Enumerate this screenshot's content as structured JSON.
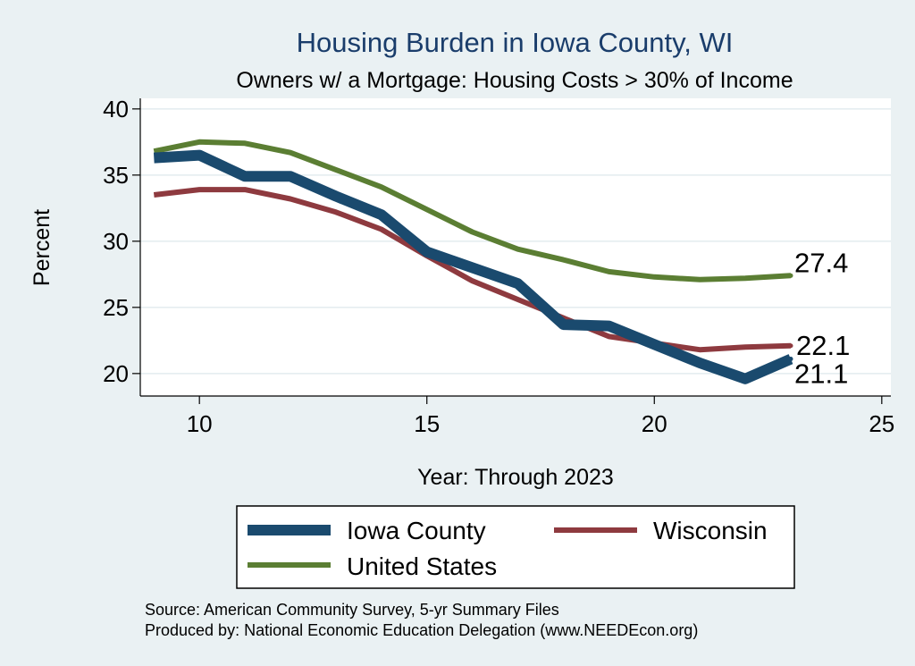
{
  "chart_data": {
    "type": "line",
    "title": "Housing Burden in Iowa County, WI",
    "subtitle": "Owners w/ a Mortgage: Housing Costs > 30% of Income",
    "xlabel": "Year: Through 2023",
    "ylabel": "Percent",
    "xlim": [
      8.7,
      25.2
    ],
    "ylim": [
      18.3,
      40.8
    ],
    "xticks": [
      10,
      15,
      20,
      25
    ],
    "yticks": [
      20,
      25,
      30,
      35,
      40
    ],
    "grid": true,
    "legend_placement": "bottom",
    "x": [
      9,
      10,
      11,
      12,
      13,
      14,
      15,
      16,
      17,
      18,
      19,
      20,
      21,
      22,
      23
    ],
    "series": [
      {
        "name": "Iowa County",
        "color": "#1a4a6e",
        "values": [
          36.3,
          36.5,
          34.9,
          34.9,
          33.4,
          32.0,
          29.2,
          28.0,
          26.8,
          23.7,
          23.6,
          22.2,
          20.8,
          19.6,
          21.1
        ],
        "end_label": "21.1"
      },
      {
        "name": "Wisconsin",
        "color": "#8e3a3f",
        "values": [
          33.5,
          33.9,
          33.9,
          33.2,
          32.2,
          30.9,
          28.9,
          27.0,
          25.6,
          24.2,
          22.8,
          22.3,
          21.8,
          22.0,
          22.1
        ],
        "end_label": "22.1"
      },
      {
        "name": "United States",
        "color": "#5b7e33",
        "values": [
          36.8,
          37.5,
          37.4,
          36.7,
          35.4,
          34.1,
          32.4,
          30.7,
          29.4,
          28.6,
          27.7,
          27.3,
          27.1,
          27.2,
          27.4
        ],
        "end_label": "27.4"
      }
    ],
    "source_lines": [
      "Source: American Community Survey, 5-yr Summary Files",
      "Produced by: National Economic Education Delegation (www.NEEDEcon.org)"
    ]
  }
}
